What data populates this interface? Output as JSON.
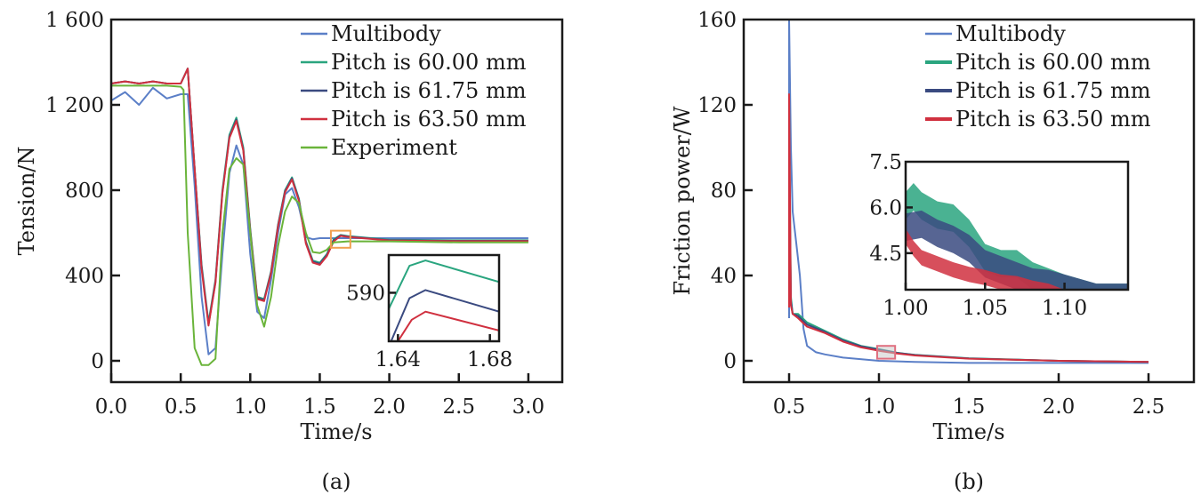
{
  "chart_data": [
    {
      "id": "a",
      "type": "line",
      "caption": "(a)",
      "xlabel": "Time/s",
      "ylabel": "Tension/N",
      "xlim": [
        0.0,
        3.25
      ],
      "ylim": [
        -100,
        1600
      ],
      "xticks": [
        "0.0",
        "0.5",
        "1.0",
        "1.5",
        "2.0",
        "2.5",
        "3.0"
      ],
      "xtick_values": [
        0.0,
        0.5,
        1.0,
        1.5,
        2.0,
        2.5,
        3.0
      ],
      "yticks": [
        "0",
        "400",
        "800",
        "1 200",
        "1 600"
      ],
      "ytick_values": [
        0,
        400,
        800,
        1200,
        1600
      ],
      "legend_position": "top-right",
      "series": [
        {
          "name": "Multibody",
          "color": "#5b7fc7",
          "x": [
            0.0,
            0.1,
            0.2,
            0.3,
            0.4,
            0.5,
            0.55,
            0.6,
            0.65,
            0.7,
            0.75,
            0.8,
            0.85,
            0.9,
            0.95,
            1.0,
            1.05,
            1.1,
            1.15,
            1.2,
            1.25,
            1.3,
            1.35,
            1.4,
            1.45,
            1.5,
            1.6,
            1.8,
            2.0,
            2.5,
            3.0
          ],
          "values": [
            1220,
            1260,
            1200,
            1280,
            1230,
            1250,
            1250,
            820,
            300,
            30,
            60,
            500,
            880,
            1010,
            920,
            500,
            230,
            200,
            380,
            600,
            780,
            810,
            720,
            580,
            570,
            575,
            575,
            575,
            575,
            575,
            575
          ]
        },
        {
          "name": "Pitch is 60.00 mm",
          "color": "#2aa57f",
          "x": [
            0.0,
            0.1,
            0.2,
            0.3,
            0.4,
            0.5,
            0.55,
            0.6,
            0.65,
            0.7,
            0.75,
            0.8,
            0.85,
            0.9,
            0.95,
            1.0,
            1.05,
            1.1,
            1.15,
            1.2,
            1.25,
            1.3,
            1.35,
            1.4,
            1.45,
            1.5,
            1.55,
            1.6,
            1.65,
            1.7,
            2.0,
            2.5,
            3.0
          ],
          "values": [
            1300,
            1310,
            1300,
            1310,
            1300,
            1300,
            1370,
            900,
            450,
            180,
            380,
            800,
            1060,
            1140,
            1000,
            620,
            300,
            290,
            420,
            640,
            800,
            860,
            760,
            560,
            470,
            460,
            500,
            570,
            590,
            585,
            568,
            565,
            565
          ]
        },
        {
          "name": "Pitch is 61.75 mm",
          "color": "#3a4a80",
          "x": [
            0.0,
            0.1,
            0.2,
            0.3,
            0.4,
            0.5,
            0.55,
            0.6,
            0.65,
            0.7,
            0.75,
            0.8,
            0.85,
            0.9,
            0.95,
            1.0,
            1.05,
            1.1,
            1.15,
            1.2,
            1.25,
            1.3,
            1.35,
            1.4,
            1.45,
            1.5,
            1.55,
            1.6,
            1.65,
            1.7,
            2.0,
            2.5,
            3.0
          ],
          "values": [
            1300,
            1310,
            1300,
            1310,
            1300,
            1300,
            1370,
            900,
            440,
            170,
            370,
            790,
            1050,
            1130,
            990,
            610,
            295,
            285,
            415,
            635,
            795,
            855,
            755,
            555,
            465,
            455,
            495,
            565,
            588,
            583,
            566,
            563,
            563
          ]
        },
        {
          "name": "Pitch is 63.50 mm",
          "color": "#d0303f",
          "x": [
            0.0,
            0.1,
            0.2,
            0.3,
            0.4,
            0.5,
            0.55,
            0.6,
            0.65,
            0.7,
            0.75,
            0.8,
            0.85,
            0.9,
            0.95,
            1.0,
            1.05,
            1.1,
            1.15,
            1.2,
            1.25,
            1.3,
            1.35,
            1.4,
            1.45,
            1.5,
            1.55,
            1.6,
            1.65,
            1.7,
            2.0,
            2.5,
            3.0
          ],
          "values": [
            1300,
            1310,
            1300,
            1310,
            1300,
            1300,
            1370,
            900,
            430,
            165,
            365,
            785,
            1045,
            1125,
            985,
            605,
            290,
            280,
            410,
            630,
            790,
            850,
            750,
            550,
            460,
            450,
            490,
            560,
            586,
            581,
            564,
            561,
            561
          ]
        },
        {
          "name": "Experiment",
          "color": "#6ab43a",
          "x": [
            0.0,
            0.1,
            0.2,
            0.3,
            0.4,
            0.5,
            0.52,
            0.55,
            0.6,
            0.65,
            0.7,
            0.75,
            0.8,
            0.85,
            0.9,
            0.95,
            1.0,
            1.05,
            1.1,
            1.15,
            1.2,
            1.25,
            1.3,
            1.35,
            1.4,
            1.45,
            1.5,
            1.55,
            1.6,
            1.7,
            2.0,
            2.5,
            3.0
          ],
          "values": [
            1290,
            1290,
            1290,
            1290,
            1290,
            1285,
            1270,
            600,
            60,
            -20,
            -20,
            10,
            600,
            900,
            950,
            920,
            600,
            260,
            160,
            300,
            540,
            700,
            770,
            740,
            600,
            510,
            505,
            520,
            555,
            560,
            560,
            555,
            555
          ]
        }
      ],
      "inset": {
        "xlim": [
          1.636,
          1.684
        ],
        "xticks": [
          "1.64",
          "1.68"
        ],
        "xtick_values": [
          1.64,
          1.68
        ],
        "yticks": [
          "590"
        ],
        "ytick_values": [
          590
        ],
        "ylim": [
          572,
          604
        ],
        "zoom_box": {
          "x": [
            1.58,
            1.72
          ],
          "y": [
            530,
            610
          ],
          "color": "#f0a050"
        },
        "series": [
          {
            "name": "Pitch is 60.00 mm",
            "color": "#2aa57f",
            "x": [
              1.636,
              1.645,
              1.652,
              1.684
            ],
            "values": [
              584,
              600,
              602,
              594
            ]
          },
          {
            "name": "Pitch is 61.75 mm",
            "color": "#3a4a80",
            "x": [
              1.637,
              1.645,
              1.652,
              1.684
            ],
            "values": [
              572,
              588,
              591,
              583
            ]
          },
          {
            "name": "Pitch is 63.50 mm",
            "color": "#d0303f",
            "x": [
              1.64,
              1.646,
              1.652,
              1.684
            ],
            "values": [
              572,
              580,
              583,
              576
            ]
          }
        ]
      }
    },
    {
      "id": "b",
      "type": "line",
      "caption": "(b)",
      "xlabel": "Time/s",
      "ylabel": "Friction power/W",
      "xlim": [
        0.25,
        2.75
      ],
      "ylim": [
        -10,
        160
      ],
      "xticks": [
        "0.5",
        "1.0",
        "1.5",
        "2.0",
        "2.5"
      ],
      "xtick_values": [
        0.5,
        1.0,
        1.5,
        2.0,
        2.5
      ],
      "yticks": [
        "0",
        "40",
        "80",
        "120",
        "160"
      ],
      "ytick_values": [
        0,
        40,
        80,
        120,
        160
      ],
      "legend_position": "top-right",
      "series": [
        {
          "name": "Multibody",
          "color": "#5b7fc7",
          "x": [
            0.5,
            0.5,
            0.51,
            0.52,
            0.54,
            0.56,
            0.58,
            0.6,
            0.65,
            0.7,
            0.8,
            1.0,
            1.2,
            1.5,
            2.0,
            2.5
          ],
          "values": [
            20,
            160,
            100,
            70,
            55,
            40,
            15,
            7,
            4,
            3,
            1.5,
            0,
            -0.5,
            -1,
            -1,
            -1
          ]
        },
        {
          "name": "Pitch is 60.00 mm",
          "color": "#2aa57f",
          "x": [
            0.5,
            0.5,
            0.51,
            0.52,
            0.55,
            0.6,
            0.7,
            0.8,
            0.9,
            1.0,
            1.1,
            1.2,
            1.5,
            2.0,
            2.5
          ],
          "values": [
            25,
            120,
            30,
            22,
            22,
            18,
            14,
            10,
            7,
            5.5,
            3.8,
            2.8,
            1.2,
            0,
            -0.5
          ]
        },
        {
          "name": "Pitch is 61.75 mm",
          "color": "#3a4a80",
          "x": [
            0.5,
            0.5,
            0.51,
            0.52,
            0.55,
            0.6,
            0.7,
            0.8,
            0.9,
            1.0,
            1.1,
            1.2,
            1.5,
            2.0,
            2.5
          ],
          "values": [
            25,
            100,
            28,
            22,
            21,
            17,
            13.5,
            9.5,
            6.8,
            5.2,
            3.7,
            2.7,
            1.1,
            0,
            -0.5
          ]
        },
        {
          "name": "Pitch is 63.50 mm",
          "color": "#d0303f",
          "x": [
            0.5,
            0.5,
            0.51,
            0.52,
            0.55,
            0.6,
            0.7,
            0.8,
            0.9,
            1.0,
            1.1,
            1.2,
            1.5,
            2.0,
            2.5
          ],
          "values": [
            25,
            125,
            26,
            22,
            20,
            16,
            13,
            9,
            6.3,
            4.7,
            3.4,
            2.5,
            1.0,
            0,
            -0.5
          ]
        }
      ],
      "inset": {
        "xlim": [
          1.0,
          1.14
        ],
        "ylim": [
          3.3,
          7.5
        ],
        "xticks": [
          "1.00",
          "1.05",
          "1.10"
        ],
        "xtick_values": [
          1.0,
          1.05,
          1.1
        ],
        "yticks": [
          "4.5",
          "6.0",
          "7.5"
        ],
        "ytick_values": [
          4.5,
          6.0,
          7.5
        ],
        "zoom_box": {
          "x": [
            0.99,
            1.09
          ],
          "y": [
            1,
            7
          ],
          "color": "#e07080"
        },
        "series": [
          {
            "name": "Pitch is 60.00 mm",
            "color": "#2aa57f",
            "x": [
              1.0,
              1.005,
              1.01,
              1.02,
              1.03,
              1.04,
              1.05,
              1.06,
              1.07,
              1.08,
              1.09,
              1.1,
              1.12,
              1.14
            ],
            "values": [
              6.5,
              6.8,
              6.5,
              6.2,
              6.1,
              5.6,
              4.8,
              4.6,
              4.6,
              4.2,
              4.0,
              3.8,
              3.5,
              3.5
            ]
          },
          {
            "name": "Pitch is 61.75 mm",
            "color": "#3a4a80",
            "x": [
              1.0,
              1.01,
              1.02,
              1.03,
              1.04,
              1.05,
              1.06,
              1.07,
              1.08,
              1.09,
              1.1,
              1.12,
              1.14
            ],
            "values": [
              5.8,
              5.9,
              5.6,
              5.4,
              5.1,
              4.6,
              4.4,
              4.2,
              4.0,
              3.95,
              3.8,
              3.5,
              3.5
            ]
          },
          {
            "name": "Pitch is 63.50 mm",
            "color": "#d0303f",
            "x": [
              1.0,
              1.005,
              1.01,
              1.02,
              1.03,
              1.04,
              1.05,
              1.06,
              1.07,
              1.08,
              1.09,
              1.1
            ],
            "values": [
              5.3,
              4.9,
              4.6,
              4.4,
              4.2,
              4.05,
              3.95,
              3.8,
              3.75,
              3.6,
              3.5,
              3.3
            ]
          }
        ]
      }
    }
  ]
}
